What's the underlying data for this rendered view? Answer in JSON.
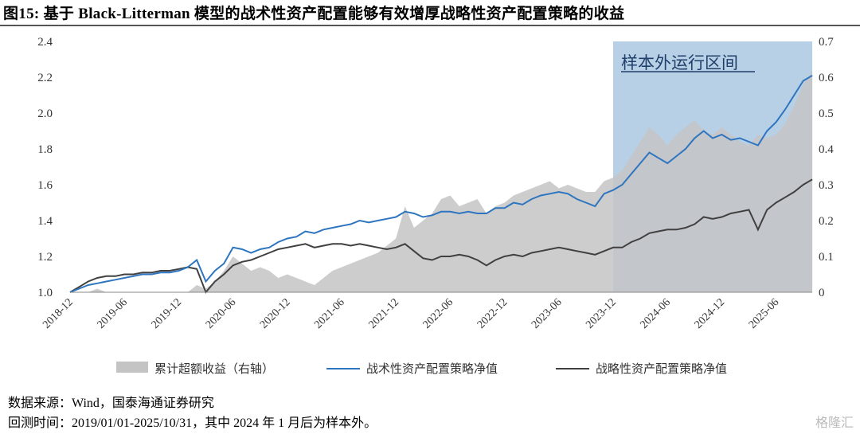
{
  "title": "图15:  基于 Black-Litterman 模型的战术性资产配置能够有效增厚战略性资产配置策略的收益",
  "footer": {
    "source": "数据来源：Wind，国泰海通证券研究",
    "note": "回测时间：2019/01/01-2025/10/31，其中 2024 年 1 月后为样本外。",
    "watermark": "格隆汇"
  },
  "chart_data": {
    "type": "line",
    "title": "",
    "start_month": "2018-12",
    "x_tick_labels": [
      "2018-12",
      "2019-06",
      "2019-12",
      "2020-06",
      "2020-12",
      "2021-06",
      "2021-12",
      "2022-06",
      "2022-12",
      "2023-06",
      "2023-12",
      "2024-06",
      "2024-12",
      "2025-06"
    ],
    "y_left": {
      "range": [
        1.0,
        2.4
      ],
      "ticks": [
        "1.0",
        "1.2",
        "1.4",
        "1.6",
        "1.8",
        "2.0",
        "2.2",
        "2.4"
      ]
    },
    "y_right": {
      "range": [
        0,
        0.7
      ],
      "ticks": [
        "0",
        "0.1",
        "0.2",
        "0.3",
        "0.4",
        "0.5",
        "0.6",
        "0.7"
      ]
    },
    "shaded_region": {
      "label": "样本外运行区间",
      "start": "2023-12",
      "end": "2025-10",
      "color": "#b8d0e6"
    },
    "series": [
      {
        "name": "累计超额收益（右轴）",
        "type": "area",
        "axis": "right",
        "color": "#c4c4c4",
        "values": [
          0,
          0,
          0,
          0.01,
          0,
          0,
          0,
          0,
          0,
          0,
          0,
          0,
          0,
          0,
          0.02,
          0.01,
          0.03,
          0.06,
          0.1,
          0.08,
          0.06,
          0.07,
          0.06,
          0.04,
          0.05,
          0.04,
          0.03,
          0.02,
          0.04,
          0.06,
          0.07,
          0.08,
          0.09,
          0.1,
          0.11,
          0.13,
          0.15,
          0.24,
          0.18,
          0.2,
          0.22,
          0.26,
          0.27,
          0.24,
          0.25,
          0.26,
          0.22,
          0.24,
          0.25,
          0.27,
          0.28,
          0.29,
          0.3,
          0.31,
          0.29,
          0.3,
          0.29,
          0.28,
          0.28,
          0.31,
          0.32,
          0.34,
          0.38,
          0.42,
          0.46,
          0.44,
          0.41,
          0.44,
          0.46,
          0.48,
          0.45,
          0.44,
          0.46,
          0.44,
          0.42,
          0.41,
          0.44,
          0.43,
          0.44,
          0.47,
          0.52,
          0.58,
          0.62
        ]
      },
      {
        "name": "战术性资产配置策略净值",
        "type": "line",
        "axis": "left",
        "color": "#2e75c0",
        "values": [
          1.0,
          1.02,
          1.04,
          1.05,
          1.06,
          1.07,
          1.08,
          1.09,
          1.1,
          1.1,
          1.11,
          1.11,
          1.12,
          1.14,
          1.18,
          1.06,
          1.12,
          1.16,
          1.25,
          1.24,
          1.22,
          1.24,
          1.25,
          1.28,
          1.3,
          1.31,
          1.34,
          1.33,
          1.35,
          1.36,
          1.37,
          1.38,
          1.4,
          1.39,
          1.4,
          1.41,
          1.42,
          1.45,
          1.44,
          1.42,
          1.43,
          1.45,
          1.45,
          1.44,
          1.45,
          1.44,
          1.44,
          1.47,
          1.47,
          1.5,
          1.49,
          1.52,
          1.54,
          1.55,
          1.56,
          1.55,
          1.52,
          1.5,
          1.48,
          1.55,
          1.57,
          1.6,
          1.66,
          1.72,
          1.78,
          1.75,
          1.72,
          1.76,
          1.8,
          1.86,
          1.9,
          1.86,
          1.88,
          1.85,
          1.86,
          1.84,
          1.82,
          1.9,
          1.95,
          2.02,
          2.1,
          2.18,
          2.21
        ]
      },
      {
        "name": "战略性资产配置策略净值",
        "type": "line",
        "axis": "left",
        "color": "#404040",
        "values": [
          1.0,
          1.03,
          1.06,
          1.08,
          1.09,
          1.09,
          1.1,
          1.1,
          1.11,
          1.11,
          1.12,
          1.12,
          1.13,
          1.14,
          1.13,
          1.0,
          1.06,
          1.1,
          1.15,
          1.17,
          1.18,
          1.2,
          1.22,
          1.24,
          1.25,
          1.26,
          1.27,
          1.25,
          1.26,
          1.27,
          1.27,
          1.26,
          1.27,
          1.26,
          1.25,
          1.24,
          1.25,
          1.27,
          1.23,
          1.19,
          1.18,
          1.2,
          1.2,
          1.21,
          1.2,
          1.18,
          1.15,
          1.18,
          1.2,
          1.21,
          1.2,
          1.22,
          1.23,
          1.24,
          1.25,
          1.24,
          1.23,
          1.22,
          1.21,
          1.23,
          1.25,
          1.25,
          1.28,
          1.3,
          1.33,
          1.34,
          1.35,
          1.35,
          1.36,
          1.38,
          1.42,
          1.41,
          1.42,
          1.44,
          1.45,
          1.46,
          1.35,
          1.46,
          1.5,
          1.53,
          1.56,
          1.6,
          1.63
        ]
      }
    ],
    "legend_placement": "bottom"
  }
}
